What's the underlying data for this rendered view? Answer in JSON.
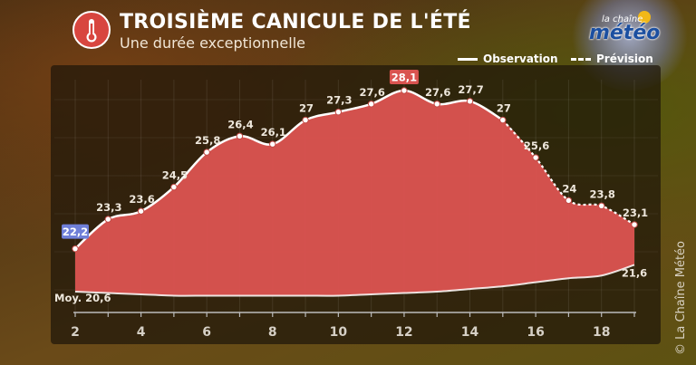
{
  "header": {
    "title": "TROISIÈME CANICULE DE L'ÉTÉ",
    "subtitle": "Une durée exceptionnelle",
    "icon": "thermometer-icon"
  },
  "logo": {
    "small": "la chaîne",
    "big": "météo"
  },
  "credit": "© La Chaîne Météo",
  "legend": {
    "observation": "Observation",
    "prevision": "Prévision"
  },
  "chart_data": {
    "type": "area",
    "title": "TROISIÈME CANICULE DE L'ÉTÉ",
    "subtitle": "Une durée exceptionnelle",
    "xlabel": "",
    "ylabel": "",
    "x_ticks": [
      2,
      4,
      6,
      8,
      10,
      12,
      14,
      16,
      18
    ],
    "xlim": [
      2,
      19
    ],
    "series": [
      {
        "name": "Observation",
        "x": [
          2,
          3,
          4,
          5,
          6,
          7,
          8,
          9,
          10,
          11,
          12,
          13,
          14,
          15
        ],
        "values": [
          22.2,
          23.3,
          23.6,
          24.5,
          25.8,
          26.4,
          26.1,
          27,
          27.3,
          27.6,
          28.1,
          27.6,
          27.7,
          27
        ],
        "labels": [
          "22,2",
          "23,3",
          "23,6",
          "24,5",
          "25,8",
          "26,4",
          "26,1",
          "27",
          "27,3",
          "27,6",
          "28,1",
          "27,6",
          "27,7",
          "27"
        ]
      },
      {
        "name": "Prévision",
        "x": [
          15,
          16,
          17,
          18,
          19
        ],
        "values": [
          27,
          25.6,
          24,
          23.8,
          23.1
        ],
        "labels": [
          "27",
          "25,6",
          "24",
          "23,8",
          "23,1"
        ]
      },
      {
        "name": "Moy.",
        "x": [
          2,
          3,
          4,
          5,
          6,
          7,
          8,
          9,
          10,
          11,
          12,
          13,
          14,
          15,
          16,
          17,
          18,
          19
        ],
        "values": [
          20.6,
          20.55,
          20.5,
          20.45,
          20.45,
          20.45,
          20.45,
          20.45,
          20.45,
          20.5,
          20.55,
          20.6,
          20.7,
          20.8,
          20.95,
          21.1,
          21.2,
          21.6
        ]
      }
    ],
    "annotations": {
      "start": "22,2",
      "max": "28,1",
      "mean_start": "Moy. 20,6",
      "mean_end": "21,6"
    },
    "colors": {
      "area": "#d9534f",
      "line": "#ffffff",
      "start_badge": "#6f7fd8",
      "max_badge": "#d9534f"
    },
    "grid": true
  }
}
